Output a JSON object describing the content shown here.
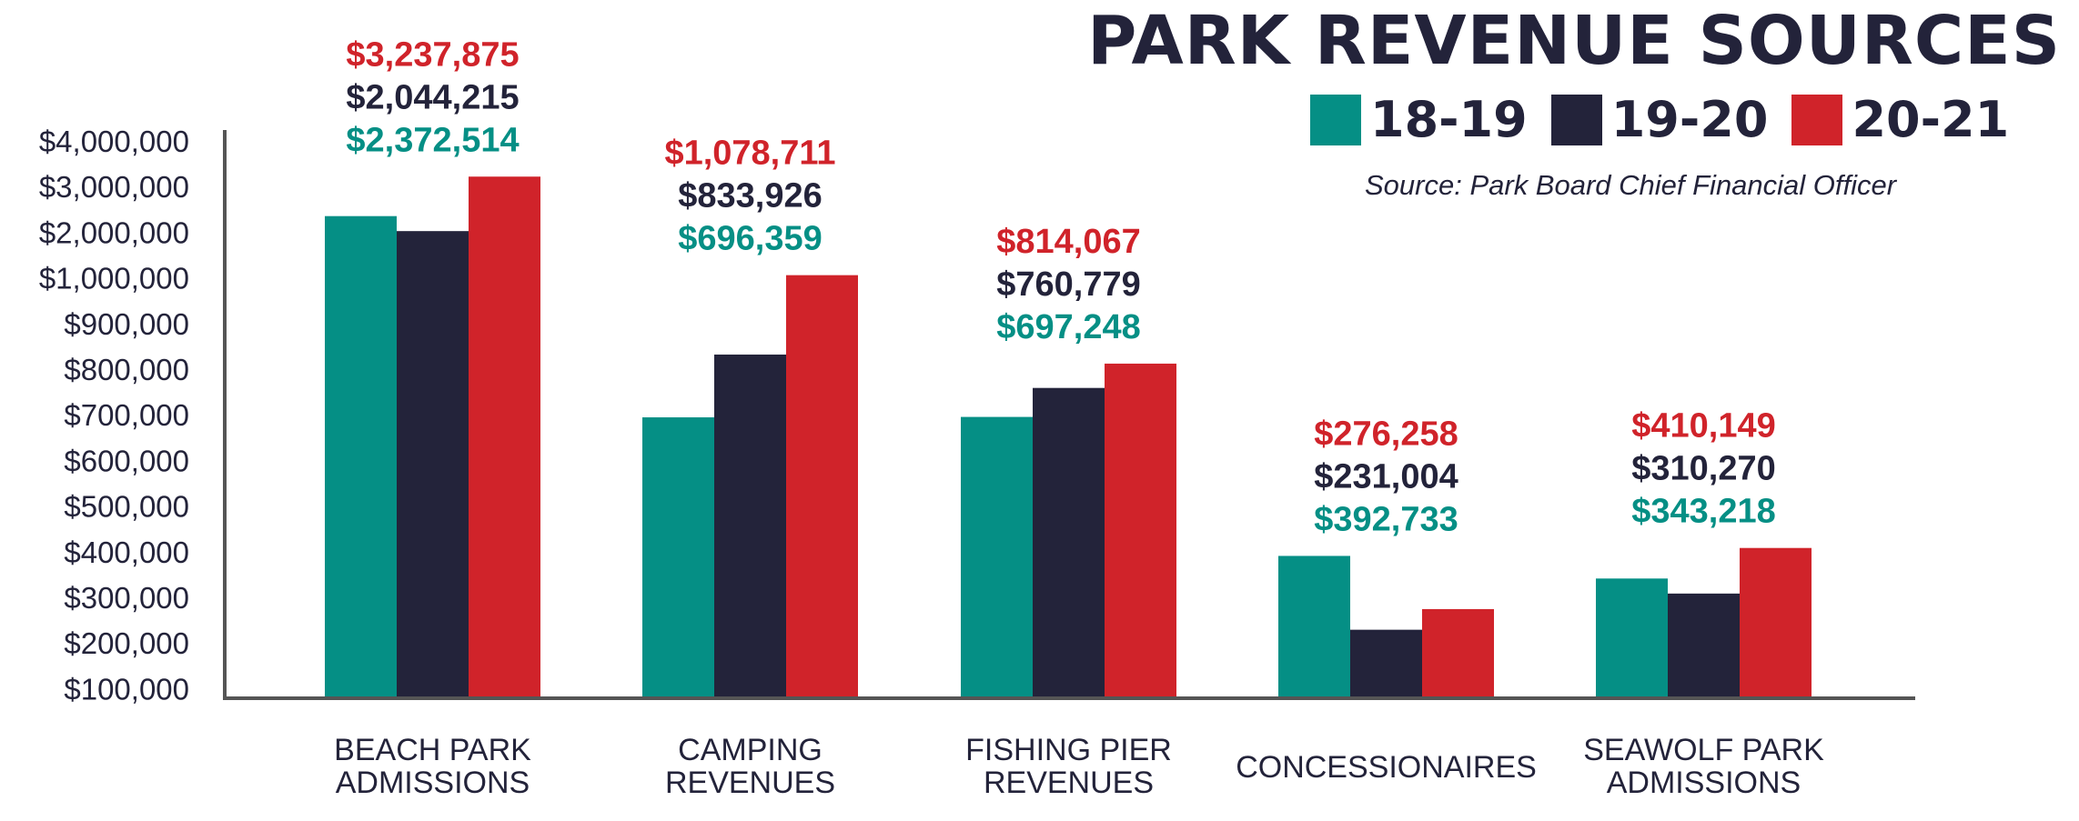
{
  "chart_data": {
    "type": "bar",
    "title": "PARK REVENUE SOURCES",
    "subtitle": "Source: Park Board Chief Financial Officer",
    "legend_position": "top-right",
    "categories": [
      [
        "BEACH PARK",
        "ADMISSIONS"
      ],
      [
        "CAMPING",
        "REVENUES"
      ],
      [
        "FISHING PIER",
        "REVENUES"
      ],
      [
        "CONCESSIONAIRES"
      ],
      [
        "SEAWOLF PARK",
        "ADMISSIONS"
      ]
    ],
    "series": [
      {
        "name": "18-19",
        "color": "#058f85",
        "values": [
          2372514,
          696359,
          697248,
          392733,
          343218
        ],
        "labels": [
          "$2,372,514",
          "$696,359",
          "$697,248",
          "$392,733",
          "$343,218"
        ]
      },
      {
        "name": "19-20",
        "color": "#23233a",
        "values": [
          2044215,
          833926,
          760779,
          231004,
          310270
        ],
        "labels": [
          "$2,044,215",
          "$833,926",
          "$760,779",
          "$231,004",
          "$310,270"
        ]
      },
      {
        "name": "20-21",
        "color": "#d0232a",
        "values": [
          3237875,
          1078711,
          814067,
          276258,
          410149
        ],
        "labels": [
          "$3,237,875",
          "$1,078,711",
          "$814,067",
          "$276,258",
          "$410,149"
        ]
      }
    ],
    "y_ticks": [
      {
        "value": 100000,
        "label": "$100,000"
      },
      {
        "value": 200000,
        "label": "$200,000"
      },
      {
        "value": 300000,
        "label": "$300,000"
      },
      {
        "value": 400000,
        "label": "$400,000"
      },
      {
        "value": 500000,
        "label": "$500,000"
      },
      {
        "value": 600000,
        "label": "$600,000"
      },
      {
        "value": 700000,
        "label": "$700,000"
      },
      {
        "value": 800000,
        "label": "$800,000"
      },
      {
        "value": 900000,
        "label": "$900,000"
      },
      {
        "value": 1000000,
        "label": "$1,000,000"
      },
      {
        "value": 2000000,
        "label": "$2,000,000"
      },
      {
        "value": 3000000,
        "label": "$3,000,000"
      },
      {
        "value": 4000000,
        "label": "$4,000,000"
      }
    ],
    "axis_color": "#555555",
    "grid": false
  }
}
